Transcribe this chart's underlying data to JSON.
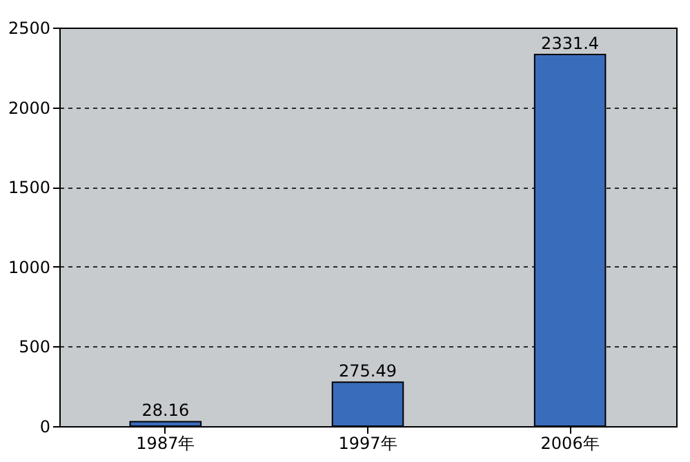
{
  "chart_data": {
    "type": "bar",
    "categories": [
      "1987年",
      "1997年",
      "2006年"
    ],
    "values": [
      28.16,
      275.49,
      2331.4
    ],
    "color": "#3a6cbc",
    "ylim": [
      0,
      2500
    ],
    "yticks": [
      0,
      500,
      1000,
      1500,
      2000,
      2500
    ],
    "grid": "y",
    "data_labels": true
  }
}
